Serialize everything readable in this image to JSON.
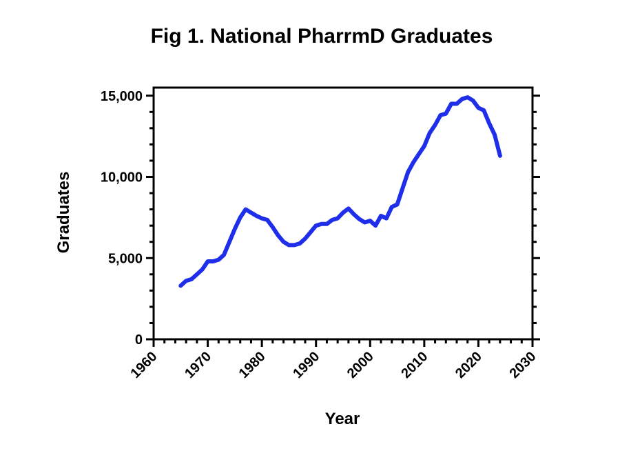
{
  "chart_data": {
    "type": "line",
    "title": "Fig 1. National PharrmD Graduates",
    "xlabel": "Year",
    "ylabel": "Graduates",
    "xlim": [
      1960,
      2030
    ],
    "ylim": [
      0,
      15500
    ],
    "x_ticks": [
      1960,
      1970,
      1980,
      1990,
      2000,
      2010,
      2020,
      2030
    ],
    "x_tick_labels": [
      "1960",
      "1970",
      "1980",
      "1990",
      "2000",
      "2010",
      "2020",
      "2030"
    ],
    "y_ticks": [
      0,
      5000,
      10000,
      15000
    ],
    "y_tick_labels": [
      "0",
      "5,000",
      "10,000",
      "15,000"
    ],
    "grid": false,
    "legend": "none",
    "series": [
      {
        "color": "#1f2ee8",
        "x": [
          1965,
          1966,
          1967,
          1968,
          1969,
          1970,
          1971,
          1972,
          1973,
          1974,
          1975,
          1976,
          1977,
          1978,
          1979,
          1980,
          1981,
          1982,
          1983,
          1984,
          1985,
          1986,
          1987,
          1988,
          1989,
          1990,
          1991,
          1992,
          1993,
          1994,
          1995,
          1996,
          1997,
          1998,
          1999,
          2000,
          2001,
          2002,
          2003,
          2004,
          2005,
          2006,
          2007,
          2008,
          2009,
          2010,
          2011,
          2012,
          2013,
          2014,
          2015,
          2016,
          2017,
          2018,
          2019,
          2020,
          2021,
          2022,
          2023,
          2024
        ],
        "y": [
          3300,
          3600,
          3700,
          4000,
          4300,
          4800,
          4800,
          4900,
          5200,
          6000,
          6800,
          7500,
          8000,
          7800,
          7600,
          7450,
          7350,
          6900,
          6400,
          6000,
          5800,
          5800,
          5900,
          6200,
          6600,
          7000,
          7100,
          7100,
          7350,
          7450,
          7800,
          8050,
          7700,
          7400,
          7200,
          7300,
          7000,
          7600,
          7450,
          8150,
          8300,
          9300,
          10300,
          10900,
          11400,
          11900,
          12700,
          13200,
          13800,
          13900,
          14500,
          14500,
          14800,
          14900,
          14700,
          14250,
          14100,
          13300,
          12600,
          11300
        ]
      }
    ]
  }
}
